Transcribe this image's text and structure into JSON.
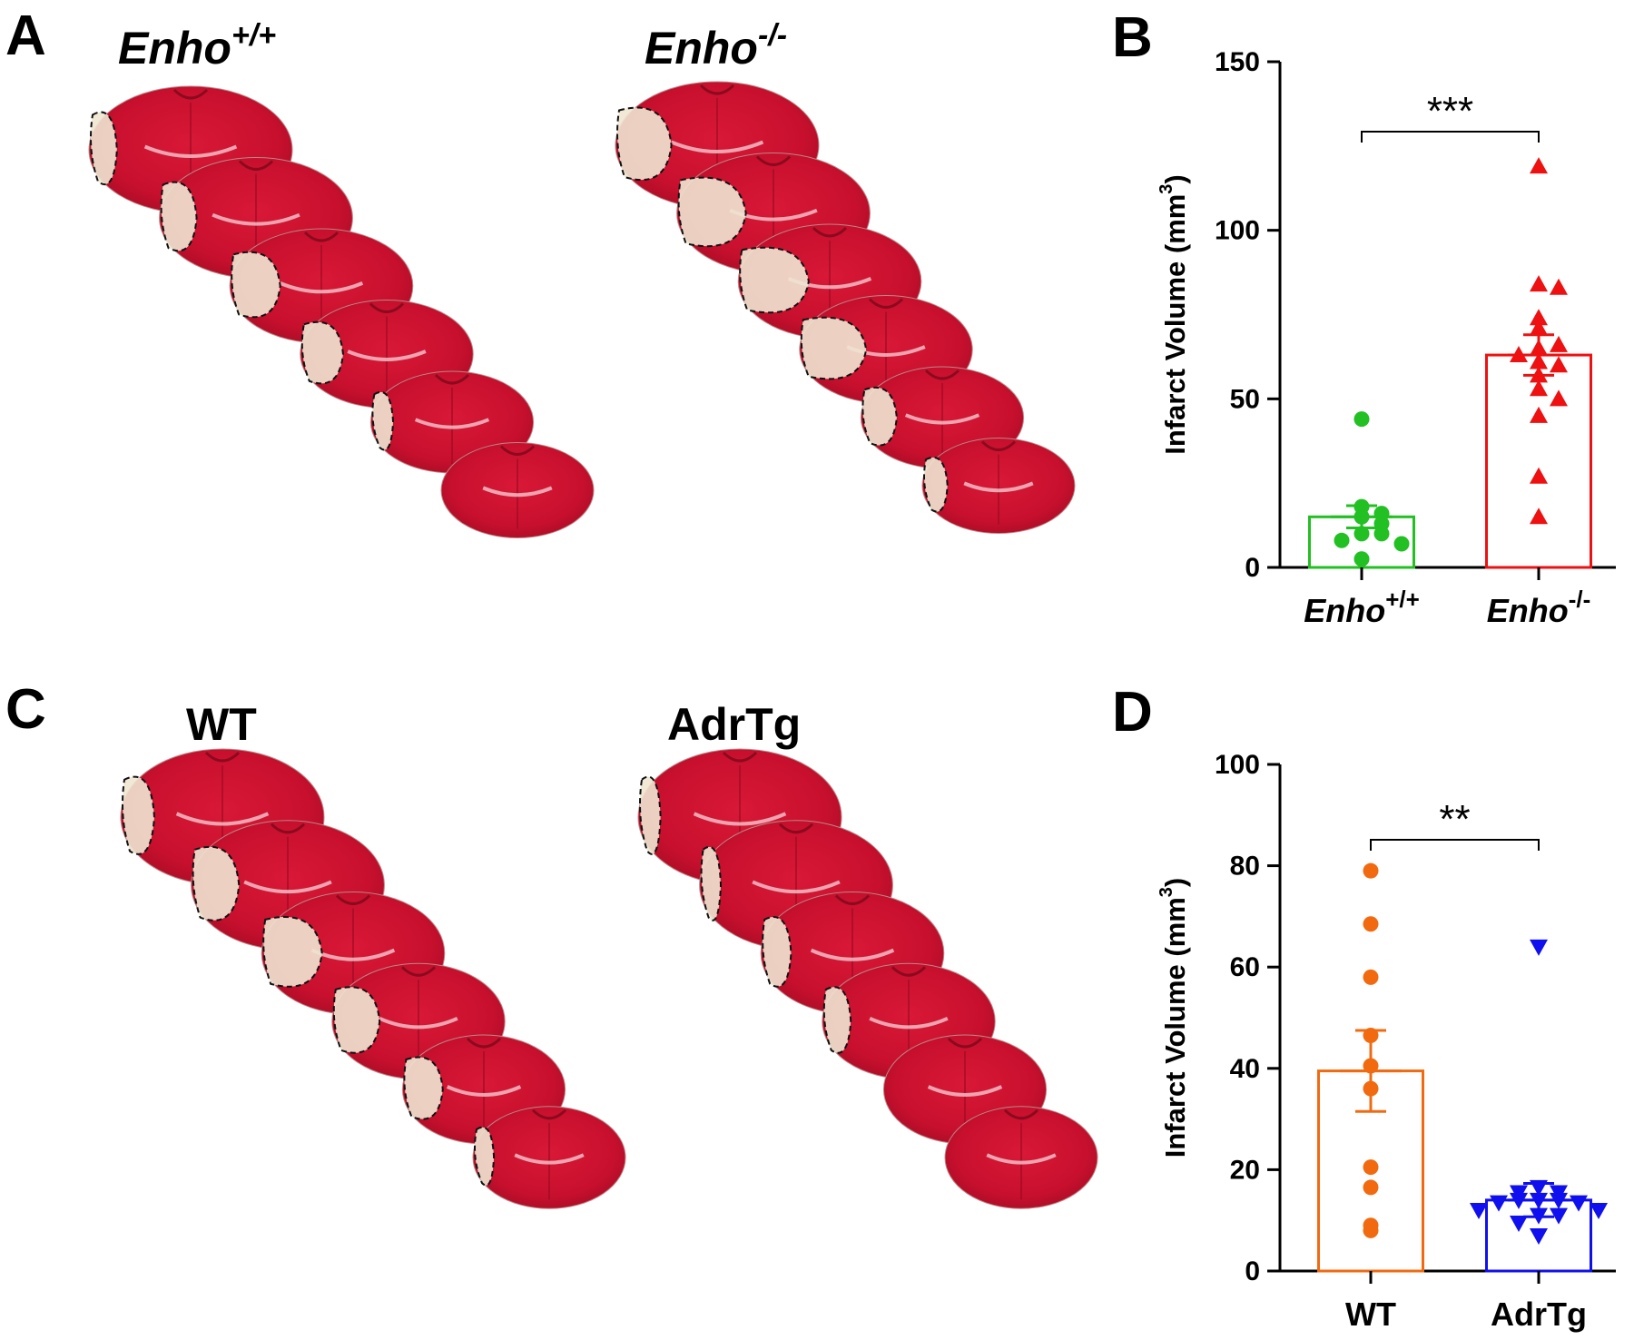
{
  "panels": {
    "A": {
      "letter": "A",
      "left_group": {
        "base": "Enho",
        "sup": "+/+"
      },
      "right_group": {
        "base": "Enho",
        "sup": "-/-"
      }
    },
    "C": {
      "letter": "C",
      "left_group": {
        "base": "WT",
        "sup": ""
      },
      "right_group": {
        "base": "AdrTg",
        "sup": ""
      }
    }
  },
  "colors": {
    "tissue_red": "#c8102e",
    "tissue_dark": "#a00a22",
    "infarct_pale": "#efe6d2",
    "green": "#22c022",
    "red": "#ee1111",
    "orange": "#f26a10",
    "blue": "#1010ee"
  },
  "chart_data": [
    {
      "panel": "B",
      "letter": "B",
      "type": "bar",
      "ylabel": "Infarct Volume (mm",
      "ylabel_sup": "3",
      "ylabel_close": ")",
      "ylim": [
        0,
        150
      ],
      "yticks": [
        0,
        50,
        100,
        150
      ],
      "categories": [
        {
          "base": "Enho",
          "sup": "+/+"
        },
        {
          "base": "Enho",
          "sup": "-/-"
        }
      ],
      "significance": "***",
      "series": [
        {
          "mean": 15,
          "sem": 3.3,
          "color": "#22c022",
          "marker": "circle",
          "points": [
            44,
            18,
            16,
            15,
            13,
            10,
            10,
            8,
            7,
            2.5
          ]
        },
        {
          "mean": 63,
          "sem": 6,
          "color": "#ee1111",
          "marker": "triangle-up",
          "points": [
            119,
            84,
            83,
            74,
            71,
            65,
            66,
            63,
            61,
            60,
            57,
            53,
            50,
            45,
            27,
            15
          ]
        }
      ]
    },
    {
      "panel": "D",
      "letter": "D",
      "type": "bar",
      "ylabel": "Infarct Volume (mm",
      "ylabel_sup": "3",
      "ylabel_close": ")",
      "ylim": [
        0,
        100
      ],
      "yticks": [
        0,
        20,
        40,
        60,
        80,
        100
      ],
      "categories": [
        {
          "base": "WT",
          "sup": ""
        },
        {
          "base": "AdrTg",
          "sup": ""
        }
      ],
      "significance": "**",
      "series": [
        {
          "mean": 39.5,
          "sem": 8,
          "color": "#f26a10",
          "marker": "circle",
          "points": [
            79,
            68.5,
            58,
            46.5,
            40.5,
            36,
            20.5,
            16.5,
            9,
            8
          ]
        },
        {
          "mean": 14,
          "sem": 3.3,
          "color": "#1010ee",
          "marker": "triangle-down",
          "points": [
            64,
            16.5,
            15.5,
            15.5,
            14,
            14,
            14,
            13.5,
            13.5,
            12,
            12,
            11,
            11,
            9.5,
            7
          ]
        }
      ]
    }
  ]
}
